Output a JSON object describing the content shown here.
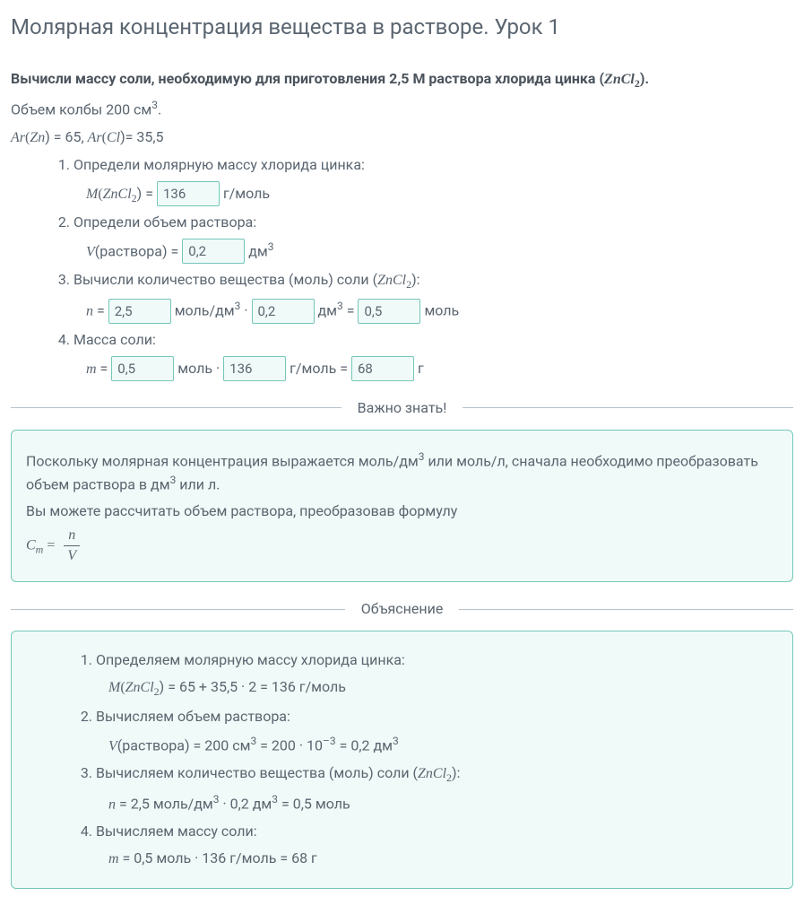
{
  "title": "Молярная концентрация вещества в растворе. Урок 1",
  "task": {
    "prefix": "Вычисли массу соли, необходимую для приготовления 2,5 М раствора хлорида цинка (",
    "formula": "ZnCl",
    "sub": "2",
    "suffix": ")."
  },
  "volume_line": {
    "prefix": "Объем колбы 200 см",
    "sup": "3",
    "suffix": "."
  },
  "ar_line": {
    "ar1_sym": "Ar",
    "ar1_open": "(",
    "ar1_el": "Zn",
    "ar1_close": ") = 65,  ",
    "ar2_sym": "Ar",
    "ar2_open": "(",
    "ar2_el": "Cl",
    "ar2_close": ")= 35,5"
  },
  "steps": {
    "s1": {
      "label": "Определи молярную массу хлорида цинка:",
      "M": "M",
      "open": "(",
      "formula": "ZnCl",
      "sub": "2",
      "close": ") = ",
      "input": "136",
      "unit": " г/моль"
    },
    "s2": {
      "label": "Определи объем раствора:",
      "V": "V",
      "text": "(раствора) = ",
      "input": "0,2",
      "unit_pre": " дм",
      "unit_sup": "3"
    },
    "s3": {
      "label_pre": "Вычисли количество вещества (моль) соли (",
      "formula": "ZnCl",
      "sub": "2",
      "label_post": "):",
      "n": "n",
      "eq": " = ",
      "in1": "2,5",
      "u1a": " моль/дм",
      "u1sup": "3",
      "dot": " · ",
      "in2": "0,2",
      "u2a": " дм",
      "u2sup": "3",
      "eq2": " = ",
      "in3": "0,5",
      "u3": " моль"
    },
    "s4": {
      "label": "Масса соли:",
      "m": "m",
      "eq": " = ",
      "in1": "0,5",
      "u1": " моль · ",
      "in2": "136",
      "u2": " г/моль = ",
      "in3": "68",
      "u3": " г"
    }
  },
  "divider1": "Важно знать!",
  "hint": {
    "line1a": "Поскольку молярная концентрация выражается моль/дм",
    "line1sup": "3",
    "line1b": " или моль/л, сначала необходимо преобразовать объем раствора в дм",
    "line1sup2": "3",
    "line1c": " или л.",
    "line2": "Вы можете рассчитать объем раствора, преобразовав формулу",
    "Cm": "C",
    "Cm_sub": "m",
    "eq": " = ",
    "num": "n",
    "den": "V"
  },
  "divider2": "Объяснение",
  "expl": {
    "s1": {
      "label": "Определяем молярную массу хлорида цинка:",
      "M": "M",
      "open": "(",
      "formula": "ZnCl",
      "sub": "2",
      "rest": ") = 65 + 35,5 · 2 = 136 г/моль"
    },
    "s2": {
      "label": "Вычисляем объем раствора:",
      "V": "V",
      "a": "(раствора) = 200 см",
      "sup1": "3",
      "b": " = 200 · 10",
      "sup2": "–3",
      "c": " = 0,2 дм",
      "sup3": "3"
    },
    "s3": {
      "label_pre": "Вычисляем количество вещества (моль) соли (",
      "formula": "ZnCl",
      "sub": "2",
      "label_post": "):",
      "n": "n",
      "a": " = 2,5 моль/дм",
      "sup1": "3",
      "b": " · 0,2 дм",
      "sup2": "3",
      "c": " = 0,5 моль"
    },
    "s4": {
      "label": "Вычисляем массу соли:",
      "m": "m",
      "rest": " = 0,5 моль · 136 г/моль = 68 г"
    }
  },
  "colors": {
    "text": "#5a6570",
    "panel_border": "#74c7b8",
    "panel_bg": "#f0faf8",
    "divider": "#b8c0c8"
  }
}
